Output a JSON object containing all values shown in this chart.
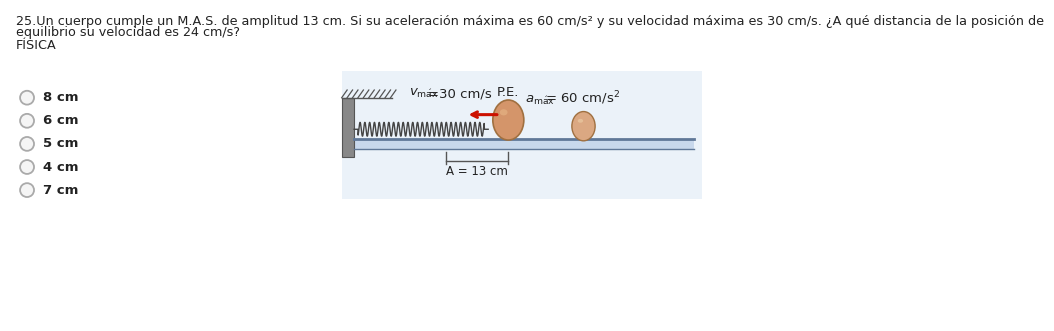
{
  "title_line1": "25.Un cuerpo cumple un M.A.S. de amplitud 13 cm. Si su aceleración máxima es 60 cm/s² y su velocidad máxima es 30 cm/s. ¿A qué distancia de la posición de",
  "title_line2": "equilibrio su velocidad es 24 cm/s?",
  "subject": "FÍSICA",
  "choices": [
    "8 cm",
    "6 cm",
    "5 cm",
    "4 cm",
    "7 cm"
  ],
  "v_label": "$v_{\\mathrm{m\\acute{a}x}}$=30 cm/s",
  "pe_label": "P.E.",
  "a_label": "$a_{\\mathrm{m\\acute{a}x}}$= 60 cm/s²",
  "A_label": "A = 13 cm",
  "bg_color": "#ffffff",
  "spring_color": "#444444",
  "platform_color": "#c8d8ec",
  "ball_color_eq": "#d4956a",
  "ball_color_disp": "#dba882",
  "ball_outline": "#a07040",
  "table_top_color": "#607898",
  "arrow_color": "#cc1100",
  "text_color": "#222222",
  "wall_color": "#888888",
  "wall_hatch_color": "#555555",
  "bracket_color": "#555555",
  "radio_color": "#aaaaaa",
  "diagram_bg": "#dce8f5"
}
